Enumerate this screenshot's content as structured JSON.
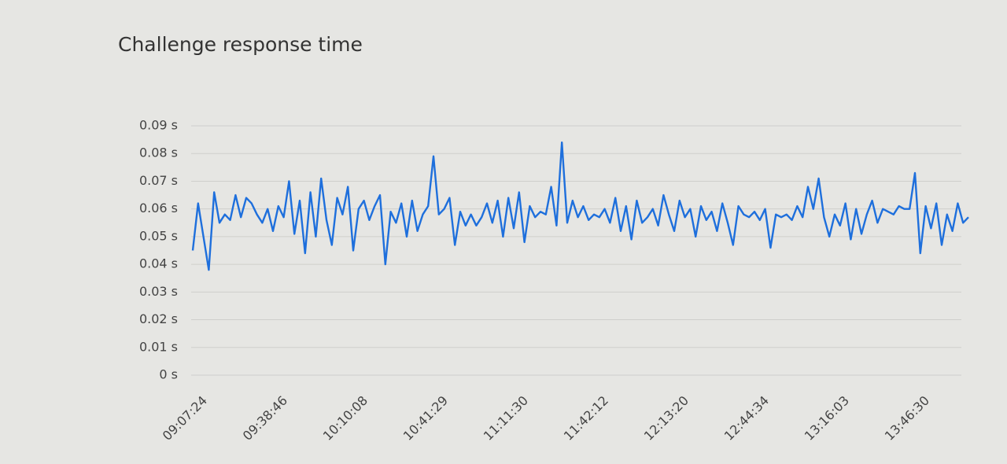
{
  "chart_data": {
    "type": "line",
    "title": "Challenge response time",
    "categories": [
      "09:07:24",
      null,
      null,
      null,
      null,
      null,
      null,
      null,
      null,
      null,
      null,
      null,
      null,
      null,
      null,
      "09:38:46",
      null,
      null,
      null,
      null,
      null,
      null,
      null,
      null,
      null,
      null,
      null,
      null,
      null,
      null,
      "10:10:08",
      null,
      null,
      null,
      null,
      null,
      null,
      null,
      null,
      null,
      null,
      null,
      null,
      null,
      null,
      "10:41:29",
      null,
      null,
      null,
      null,
      null,
      null,
      null,
      null,
      null,
      null,
      null,
      null,
      null,
      null,
      "11:11:30",
      null,
      null,
      null,
      null,
      null,
      null,
      null,
      null,
      null,
      null,
      null,
      null,
      null,
      null,
      "11:42:12",
      null,
      null,
      null,
      null,
      null,
      null,
      null,
      null,
      null,
      null,
      null,
      null,
      null,
      null,
      "12:13:20",
      null,
      null,
      null,
      null,
      null,
      null,
      null,
      null,
      null,
      null,
      null,
      null,
      null,
      null,
      "12:44:34",
      null,
      null,
      null,
      null,
      null,
      null,
      null,
      null,
      null,
      null,
      null,
      null,
      null,
      null,
      "13:16:03",
      null,
      null,
      null,
      null,
      null,
      null,
      null,
      null,
      null,
      null,
      null,
      null,
      null,
      null,
      "13:46:30",
      null,
      null,
      null,
      null,
      null,
      null,
      null,
      null,
      null,
      null
    ],
    "values": [
      0.045,
      0.062,
      0.05,
      0.038,
      0.066,
      0.055,
      0.058,
      0.056,
      0.065,
      0.057,
      0.064,
      0.062,
      0.058,
      0.055,
      0.06,
      0.052,
      0.061,
      0.057,
      0.07,
      0.051,
      0.063,
      0.044,
      0.066,
      0.05,
      0.071,
      0.056,
      0.047,
      0.064,
      0.058,
      0.068,
      0.045,
      0.06,
      0.063,
      0.056,
      0.061,
      0.065,
      0.04,
      0.059,
      0.055,
      0.062,
      0.05,
      0.063,
      0.052,
      0.058,
      0.061,
      0.079,
      0.058,
      0.06,
      0.064,
      0.047,
      0.059,
      0.054,
      0.058,
      0.054,
      0.057,
      0.062,
      0.055,
      0.063,
      0.05,
      0.064,
      0.053,
      0.066,
      0.048,
      0.061,
      0.057,
      0.059,
      0.058,
      0.068,
      0.054,
      0.084,
      0.055,
      0.063,
      0.057,
      0.061,
      0.056,
      0.058,
      0.057,
      0.06,
      0.055,
      0.064,
      0.052,
      0.061,
      0.049,
      0.063,
      0.055,
      0.057,
      0.06,
      0.054,
      0.065,
      0.058,
      0.052,
      0.063,
      0.057,
      0.06,
      0.05,
      0.061,
      0.056,
      0.059,
      0.052,
      0.062,
      0.055,
      0.047,
      0.061,
      0.058,
      0.057,
      0.059,
      0.056,
      0.06,
      0.046,
      0.058,
      0.057,
      0.058,
      0.056,
      0.061,
      0.057,
      0.068,
      0.06,
      0.071,
      0.057,
      0.05,
      0.058,
      0.054,
      0.062,
      0.049,
      0.06,
      0.051,
      0.058,
      0.063,
      0.055,
      0.06,
      0.059,
      0.058,
      0.061,
      0.06,
      0.06,
      0.073,
      0.044,
      0.061,
      0.053,
      0.062,
      0.047,
      0.058,
      0.052,
      0.062,
      0.055,
      0.057
    ],
    "color": "#1e6fdc",
    "ylim": [
      0,
      0.09
    ],
    "yticks": [
      {
        "value": 0,
        "label": "0 s"
      },
      {
        "value": 0.01,
        "label": "0.01 s"
      },
      {
        "value": 0.02,
        "label": "0.02 s"
      },
      {
        "value": 0.03,
        "label": "0.03 s"
      },
      {
        "value": 0.04,
        "label": "0.04 s"
      },
      {
        "value": 0.05,
        "label": "0.05 s"
      },
      {
        "value": 0.06,
        "label": "0.06 s"
      },
      {
        "value": 0.07,
        "label": "0.07 s"
      },
      {
        "value": 0.08,
        "label": "0.08 s"
      },
      {
        "value": 0.09,
        "label": "0.09 s"
      }
    ],
    "grid": true
  }
}
